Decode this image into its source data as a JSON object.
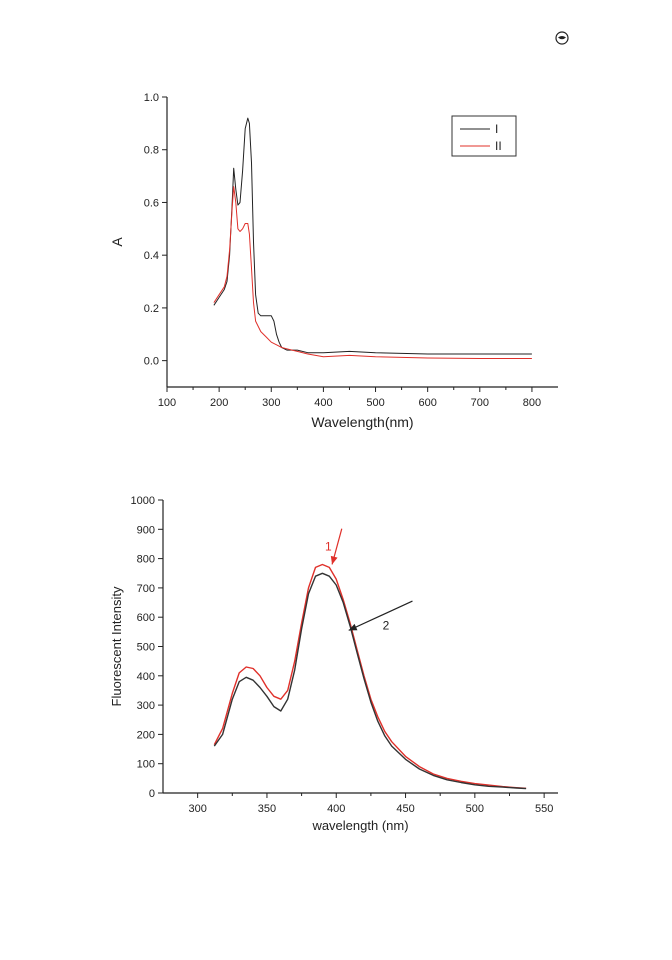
{
  "chart_data": [
    {
      "type": "line",
      "title": "",
      "xlabel": "Wavelength(nm)",
      "ylabel": "A",
      "xlim": [
        100,
        850
      ],
      "ylim": [
        -0.1,
        1.0
      ],
      "xticks": [
        "100",
        "200",
        "300",
        "400",
        "500",
        "600",
        "700",
        "800"
      ],
      "yticks": [
        "0.0",
        "0.2",
        "0.4",
        "0.6",
        "0.8",
        "1.0"
      ],
      "legend_position": "top-right",
      "series": [
        {
          "name": "I",
          "color": "#222222",
          "x": [
            190,
            200,
            210,
            215,
            220,
            225,
            228,
            232,
            236,
            240,
            245,
            250,
            255,
            258,
            262,
            266,
            270,
            275,
            280,
            285,
            290,
            300,
            305,
            310,
            315,
            320,
            330,
            340,
            350,
            370,
            400,
            450,
            500,
            600,
            700,
            800
          ],
          "y": [
            0.21,
            0.24,
            0.27,
            0.3,
            0.4,
            0.6,
            0.73,
            0.65,
            0.59,
            0.6,
            0.72,
            0.88,
            0.92,
            0.9,
            0.75,
            0.45,
            0.25,
            0.18,
            0.17,
            0.17,
            0.17,
            0.17,
            0.15,
            0.1,
            0.07,
            0.05,
            0.04,
            0.04,
            0.04,
            0.03,
            0.03,
            0.035,
            0.03,
            0.025,
            0.025,
            0.025
          ]
        },
        {
          "name": "II",
          "color": "#e0302a",
          "x": [
            190,
            200,
            210,
            215,
            220,
            225,
            228,
            232,
            236,
            240,
            245,
            250,
            255,
            258,
            262,
            266,
            270,
            280,
            290,
            300,
            310,
            320,
            330,
            340,
            350,
            370,
            400,
            450,
            500,
            600,
            700,
            800
          ],
          "y": [
            0.22,
            0.25,
            0.28,
            0.32,
            0.42,
            0.58,
            0.66,
            0.6,
            0.5,
            0.49,
            0.5,
            0.52,
            0.52,
            0.48,
            0.35,
            0.22,
            0.15,
            0.11,
            0.09,
            0.07,
            0.06,
            0.05,
            0.045,
            0.04,
            0.035,
            0.025,
            0.015,
            0.02,
            0.015,
            0.01,
            0.008,
            0.008
          ]
        }
      ]
    },
    {
      "type": "line",
      "title": "",
      "xlabel": "wavelength (nm)",
      "ylabel": "Fluorescent Intensity",
      "xlim": [
        275,
        560
      ],
      "ylim": [
        0,
        1000
      ],
      "xticks": [
        "300",
        "350",
        "400",
        "450",
        "500",
        "550"
      ],
      "yticks": [
        "0",
        "100",
        "200",
        "300",
        "400",
        "500",
        "600",
        "700",
        "800",
        "900",
        "1000"
      ],
      "series": [
        {
          "label": "1",
          "color": "#e0302a",
          "x": [
            312,
            318,
            325,
            330,
            335,
            340,
            345,
            350,
            355,
            360,
            365,
            370,
            375,
            380,
            385,
            390,
            395,
            400,
            405,
            410,
            415,
            420,
            425,
            430,
            435,
            440,
            450,
            460,
            470,
            480,
            490,
            500,
            510,
            520,
            530,
            537
          ],
          "y": [
            165,
            220,
            340,
            410,
            430,
            425,
            400,
            360,
            330,
            320,
            350,
            450,
            580,
            700,
            770,
            780,
            770,
            730,
            660,
            580,
            490,
            400,
            320,
            260,
            210,
            175,
            125,
            90,
            65,
            50,
            40,
            32,
            27,
            22,
            18,
            16
          ]
        },
        {
          "label": "2",
          "color": "#333333",
          "x": [
            312,
            318,
            325,
            330,
            335,
            340,
            345,
            350,
            355,
            360,
            365,
            370,
            375,
            380,
            385,
            390,
            395,
            400,
            405,
            410,
            415,
            420,
            425,
            430,
            435,
            440,
            450,
            460,
            470,
            480,
            490,
            500,
            510,
            520,
            530,
            537
          ],
          "y": [
            160,
            200,
            320,
            380,
            395,
            385,
            360,
            330,
            295,
            280,
            320,
            420,
            560,
            680,
            740,
            750,
            740,
            710,
            650,
            570,
            480,
            390,
            310,
            245,
            195,
            160,
            115,
            82,
            60,
            45,
            36,
            28,
            23,
            20,
            17,
            15
          ]
        }
      ],
      "annotations": [
        {
          "text": "1",
          "color": "#e0302a",
          "arrow_from": [
            404,
            902
          ],
          "arrow_to": [
            397,
            780
          ]
        },
        {
          "text": "2",
          "color": "#222222",
          "arrow_from": [
            455,
            655
          ],
          "arrow_to": [
            409,
            555
          ]
        }
      ]
    }
  ]
}
